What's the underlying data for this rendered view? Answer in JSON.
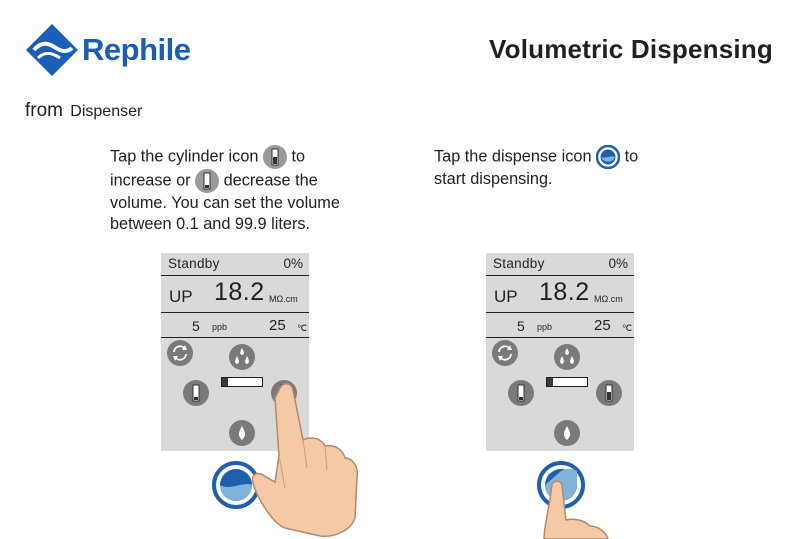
{
  "brand": {
    "name": "Rephile",
    "color": "#1a5eb8"
  },
  "page": {
    "title": "Volumetric Dispensing",
    "from_label": "from",
    "from_source": "Dispenser"
  },
  "instructions": {
    "left": {
      "p1": "Tap the cylinder icon",
      "p2": "to",
      "p3": "increase or",
      "p4": "decrease the",
      "p5": "volume. You can set the volume",
      "p6": "between 0.1 and 99.9 liters."
    },
    "right": {
      "p1": "Tap the dispense icon",
      "p2": "to",
      "p3": "start dispensing."
    }
  },
  "screens": {
    "left": {
      "status": "Standby",
      "percent": "0%",
      "mode": "UP",
      "resistivity": "18.2",
      "resistivity_unit": "MΩ.cm",
      "toc": "5",
      "toc_unit": "ppb",
      "temperature": "25",
      "temperature_unit": "℃",
      "progress_fraction": 0.15,
      "icons": [
        "refresh-icon",
        "double-drop-icon",
        "cylinder-decrease-icon",
        "cylinder-increase-icon",
        "drop-icon"
      ]
    },
    "right": {
      "status": "Standby",
      "percent": "0%",
      "mode": "UP",
      "resistivity": "18.2",
      "resistivity_unit": "MΩ.cm",
      "toc": "5",
      "toc_unit": "ppb",
      "temperature": "25",
      "temperature_unit": "℃",
      "progress_fraction": 0.15,
      "icons": [
        "refresh-icon",
        "double-drop-icon",
        "cylinder-decrease-icon",
        "cylinder-increase-icon",
        "drop-icon"
      ]
    }
  },
  "colors": {
    "screen_bg": "#d9d9d9",
    "icon_circle": "#7a7a7a",
    "dispense_ring": "#1f5fae",
    "dispense_water": "#7fb3da",
    "skin": "#f3c9a6"
  }
}
